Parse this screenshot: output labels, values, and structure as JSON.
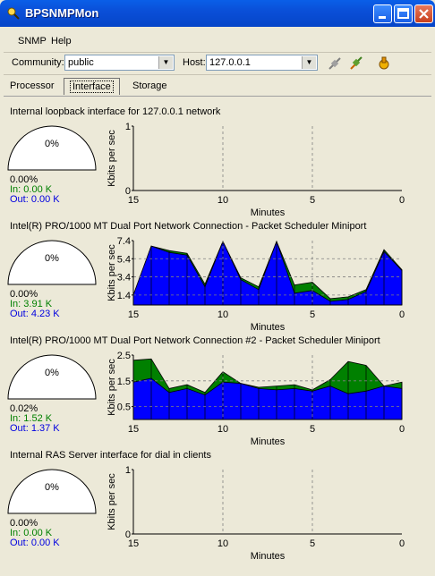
{
  "window": {
    "title": "BPSNMPMon"
  },
  "menu": [
    {
      "label": "SNMP"
    },
    {
      "label": "Help"
    }
  ],
  "toolbar": {
    "community_label": "Community:",
    "community_value": "public",
    "host_label": "Host:",
    "host_value": "127.0.0.1",
    "icons": [
      "disconnect-icon",
      "connect-icon",
      "settings-icon"
    ]
  },
  "tabs": [
    {
      "label": "Processor",
      "active": false
    },
    {
      "label": "Interface",
      "active": true
    },
    {
      "label": "Storage",
      "active": false
    }
  ],
  "colors": {
    "in": "#0000ff",
    "out": "#008000",
    "in_text": "#008000",
    "out_text": "#0000e0"
  },
  "interfaces": [
    {
      "name": "Internal loopback interface for 127.0.0.1 network",
      "gauge": "0%",
      "utilization": "0.00%",
      "in": "In: 0.00 K",
      "out": "Out: 0.00 K"
    },
    {
      "name": "Intel(R) PRO/1000 MT Dual Port Network Connection - Packet Scheduler Miniport",
      "gauge": "0%",
      "utilization": "0.00%",
      "in": "In: 3.91 K",
      "out": "Out: 4.23 K"
    },
    {
      "name": "Intel(R) PRO/1000 MT Dual Port Network Connection #2 - Packet Scheduler Miniport",
      "gauge": "0%",
      "utilization": "0.02%",
      "in": "In: 1.52 K",
      "out": "Out: 1.37 K"
    },
    {
      "name": "Internal RAS Server interface for dial in clients",
      "gauge": "0%",
      "utilization": "0.00%",
      "in": "In: 0.00 K",
      "out": "Out: 0.00 K"
    }
  ],
  "chart_data": [
    {
      "type": "area",
      "xlabel": "Minutes",
      "ylabel": "Kbits per sec",
      "x": [
        15,
        14,
        13,
        12,
        11,
        10,
        9,
        8,
        7,
        6,
        5,
        4,
        3,
        2,
        1,
        0
      ],
      "x_ticks": [
        "15",
        "10",
        "5",
        "0"
      ],
      "y_ticks": [
        "1",
        "0"
      ],
      "ylim": [
        0,
        1
      ],
      "series": [
        {
          "values": [
            0,
            0,
            0,
            0,
            0,
            0,
            0,
            0,
            0,
            0,
            0,
            0,
            0,
            0,
            0,
            0
          ],
          "color": "#0000ff"
        },
        {
          "values": [
            0,
            0,
            0,
            0,
            0,
            0,
            0,
            0,
            0,
            0,
            0,
            0,
            0,
            0,
            0,
            0
          ],
          "color": "#008000"
        }
      ]
    },
    {
      "type": "area",
      "xlabel": "Minutes",
      "ylabel": "Kbits per sec",
      "x": [
        15,
        14,
        13,
        12,
        11,
        10,
        9,
        8,
        7,
        6,
        5,
        4,
        3,
        2,
        1,
        0
      ],
      "x_ticks": [
        "15",
        "10",
        "5",
        "0"
      ],
      "y_ticks": [
        "7.4",
        "5.4",
        "3.4",
        "1.4"
      ],
      "ylim": [
        0.3,
        7.4
      ],
      "series": [
        {
          "values": [
            1.4,
            6.8,
            6.1,
            5.8,
            2.3,
            7.3,
            3.1,
            2.0,
            7.3,
            1.6,
            1.9,
            0.7,
            0.9,
            1.8,
            6.2,
            4.1
          ],
          "color": "#0000ff"
        },
        {
          "values": [
            1.4,
            6.8,
            6.3,
            6.0,
            2.6,
            7.3,
            3.3,
            2.3,
            7.3,
            2.5,
            2.8,
            1.0,
            1.2,
            2.0,
            6.4,
            4.2
          ],
          "color": "#008000"
        }
      ]
    },
    {
      "type": "area",
      "xlabel": "Minutes",
      "ylabel": "Kbits per sec",
      "x": [
        15,
        14,
        13,
        12,
        11,
        10,
        9,
        8,
        7,
        6,
        5,
        4,
        3,
        2,
        1,
        0
      ],
      "x_ticks": [
        "15",
        "10",
        "5",
        "0"
      ],
      "y_ticks": [
        "2.5",
        "1.5",
        "0.5"
      ],
      "ylim": [
        0,
        2.5
      ],
      "series": [
        {
          "values": [
            1.45,
            1.6,
            1.05,
            1.2,
            0.95,
            1.45,
            1.4,
            1.2,
            1.15,
            1.2,
            1.1,
            1.3,
            1.0,
            1.1,
            1.3,
            1.2
          ],
          "color": "#0000ff"
        },
        {
          "values": [
            2.3,
            2.35,
            1.2,
            1.35,
            1.05,
            1.85,
            1.4,
            1.25,
            1.3,
            1.35,
            1.15,
            1.55,
            2.25,
            2.1,
            1.3,
            1.45
          ],
          "color": "#008000"
        }
      ]
    },
    {
      "type": "area",
      "xlabel": "Minutes",
      "ylabel": "Kbits per sec",
      "x": [
        15,
        14,
        13,
        12,
        11,
        10,
        9,
        8,
        7,
        6,
        5,
        4,
        3,
        2,
        1,
        0
      ],
      "x_ticks": [
        "15",
        "10",
        "5",
        "0"
      ],
      "y_ticks": [
        "1",
        "0"
      ],
      "ylim": [
        0,
        1
      ],
      "series": [
        {
          "values": [
            0,
            0,
            0,
            0,
            0,
            0,
            0,
            0,
            0,
            0,
            0,
            0,
            0,
            0,
            0,
            0
          ],
          "color": "#0000ff"
        },
        {
          "values": [
            0,
            0,
            0,
            0,
            0,
            0,
            0,
            0,
            0,
            0,
            0,
            0,
            0,
            0,
            0,
            0
          ],
          "color": "#008000"
        }
      ]
    }
  ]
}
